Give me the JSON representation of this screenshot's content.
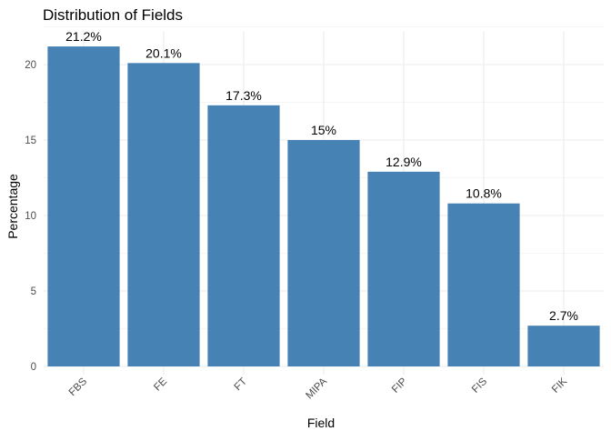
{
  "chart_data": {
    "type": "bar",
    "title": "Distribution of Fields",
    "xlabel": "Field",
    "ylabel": "Percentage",
    "categories": [
      "FBS",
      "FE",
      "FT",
      "MIPA",
      "FIP",
      "FIS",
      "FIK"
    ],
    "values": [
      21.2,
      20.1,
      17.3,
      15.0,
      12.9,
      10.8,
      2.7
    ],
    "data_labels": [
      "21.2%",
      "20.1%",
      "17.3%",
      "15%",
      "12.9%",
      "10.8%",
      "2.7%"
    ],
    "yticks": [
      0,
      5,
      10,
      15,
      20
    ],
    "ylim": [
      0,
      22.26
    ],
    "grid": true,
    "legend": "none",
    "bar_color": "#4682B4",
    "grid_color": "#EBEBEB",
    "text_color": "#000000",
    "tick_color": "#4D4D4D"
  }
}
